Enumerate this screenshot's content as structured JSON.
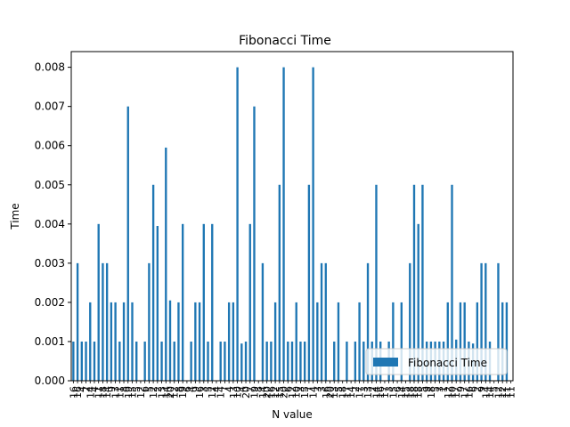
{
  "chart_data": {
    "type": "bar",
    "title": "Fibonacci Time",
    "xlabel": "N value",
    "ylabel": "Time",
    "ylim": [
      0,
      0.0084
    ],
    "yticks": [
      "0.000",
      "0.001",
      "0.002",
      "0.003",
      "0.004",
      "0.005",
      "0.006",
      "0.007",
      "0.008"
    ],
    "categories": [
      "16",
      "16",
      "4",
      "2",
      "14",
      "4",
      "11",
      "18",
      "14",
      "9",
      "13",
      "11",
      "8",
      "19",
      "15",
      "5",
      "12",
      "6",
      "5",
      "12",
      "2",
      "13",
      "14",
      "20",
      "12",
      "8",
      "19",
      "6",
      "4",
      "9",
      "16",
      "3",
      "5",
      "12",
      "4",
      "14",
      "7",
      "4",
      "13",
      "10",
      "4",
      "20",
      "7",
      "19",
      "8",
      "14",
      "20",
      "16",
      "12",
      "15",
      "20",
      "6",
      "12",
      "10",
      "3",
      "15",
      "7",
      "14",
      "3",
      "3",
      "16",
      "20",
      "13",
      "5",
      "18",
      "17",
      "14",
      "2",
      "17",
      "3",
      "13",
      "2",
      "14",
      "16",
      "17",
      "3",
      "15",
      "6",
      "14",
      "15",
      "18",
      "18",
      "18",
      "5",
      "9",
      "18",
      "5",
      "3",
      "1",
      "12",
      "10",
      "17",
      "9",
      "17",
      "16",
      "6",
      "2",
      "9",
      "14",
      "14",
      "5",
      "12",
      "12",
      "11",
      "11"
    ],
    "series": [
      {
        "name": "Fibonacci Time",
        "color": "#1f77b4",
        "values": [
          0.001,
          0.003,
          0.001,
          0.001,
          0.002,
          0.001,
          0.004,
          0.003,
          0.003,
          0.002,
          0.002,
          0.001,
          0.002,
          0.007,
          0.002,
          0.001,
          0,
          0.001,
          0.003,
          0.005,
          0.00395,
          0.001,
          0.00595,
          0.00205,
          0.001,
          0.002,
          0.004,
          0,
          0.001,
          0.002,
          0.002,
          0.004,
          0.001,
          0.004,
          0,
          0.001,
          0.001,
          0.002,
          0.002,
          0.008,
          0.00095,
          0.001,
          0.004,
          0.007,
          0,
          0.003,
          0.001,
          0.001,
          0.002,
          0.005,
          0.008,
          0.001,
          0.001,
          0.002,
          0.001,
          0.001,
          0.005,
          0.008,
          0.002,
          0.003,
          0.003,
          0,
          0.001,
          0.002,
          0,
          0.001,
          0,
          0.001,
          0.002,
          0.001,
          0.003,
          0.001,
          0.005,
          0.001,
          0,
          0.001,
          0.002,
          0,
          0.002,
          0,
          0.003,
          0.005,
          0.004,
          0.005,
          0.001,
          0.001,
          0.001,
          0.001,
          0.001,
          0.002,
          0.005,
          0.00105,
          0.002,
          0.002,
          0.001,
          0.00095,
          0.002,
          0.003,
          0.003,
          0.001,
          0,
          0.003,
          0.002,
          0.002,
          0
        ]
      }
    ],
    "legend": "lower-right",
    "grid": false
  }
}
